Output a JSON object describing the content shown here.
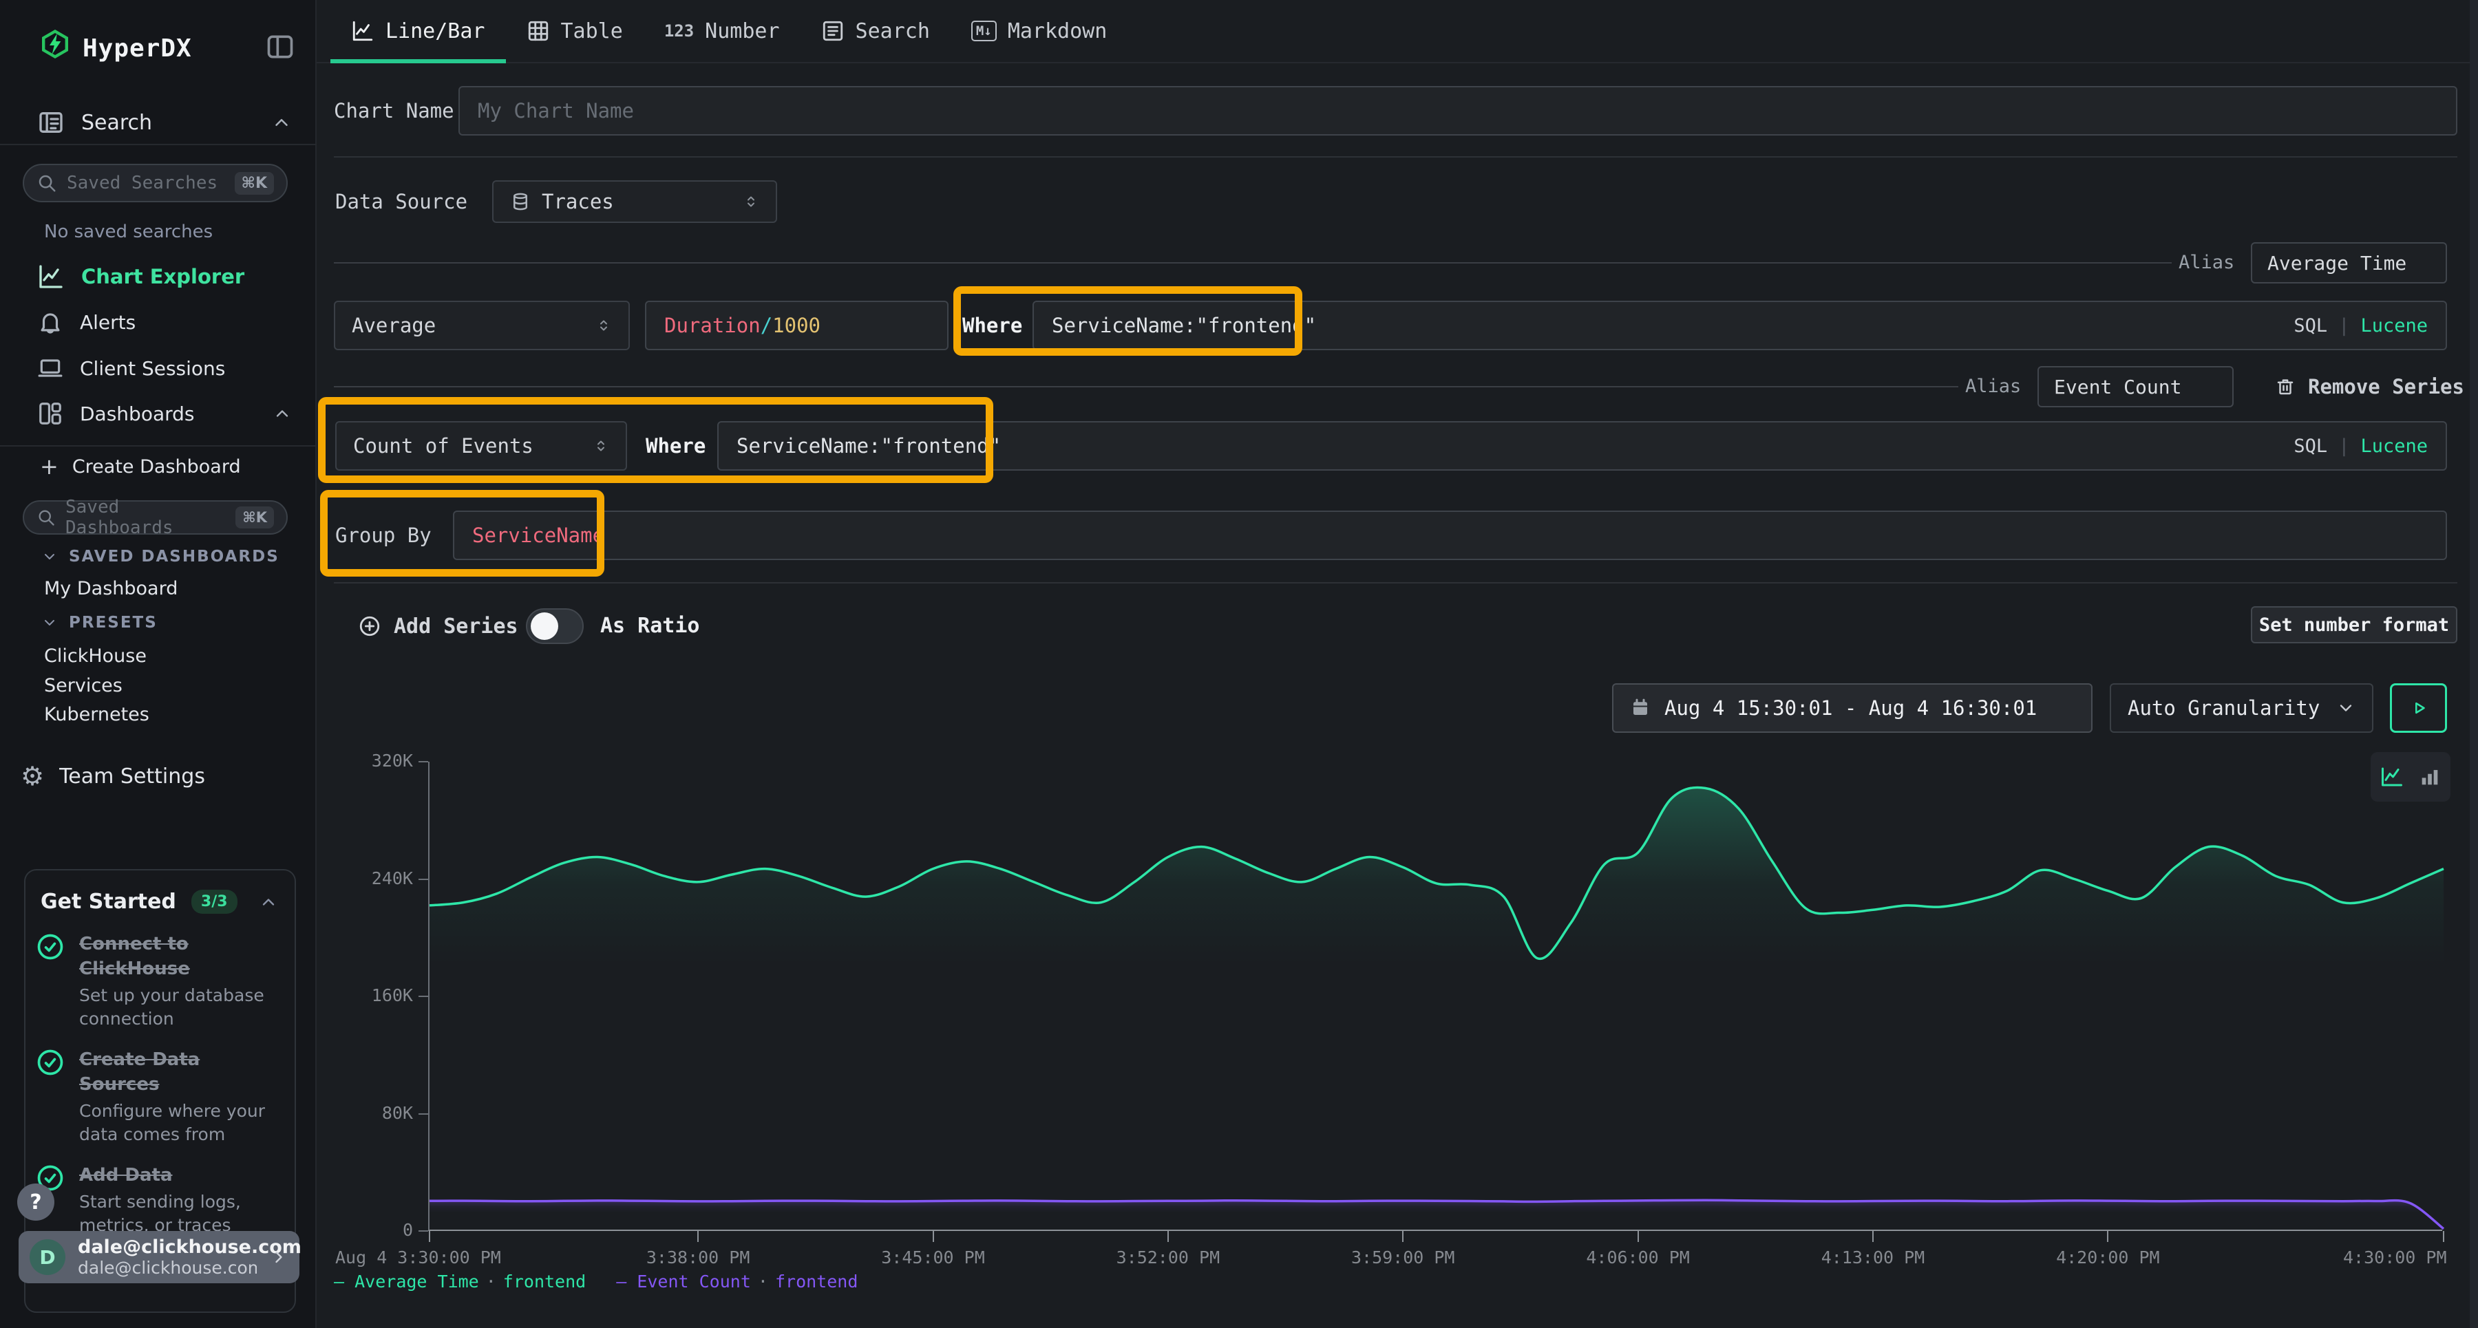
{
  "app": {
    "name": "HyperDX"
  },
  "colors": {
    "accent": "#2ee6a8",
    "annotation": "#f5a802",
    "series_avg": "#2ee6a8",
    "series_count": "#8457f5",
    "tok_field": "#ef6a7d",
    "tok_op": "#49d0cf",
    "tok_num": "#e3c271",
    "muted_blue": "#8b93a7"
  },
  "tabs": {
    "items": [
      {
        "label": "Line/Bar",
        "active": true
      },
      {
        "label": "Table"
      },
      {
        "label": "Number",
        "icon_text": "123"
      },
      {
        "label": "Search"
      },
      {
        "label": "Markdown",
        "icon_text": "M↓"
      }
    ]
  },
  "sidebar": {
    "search_label": "Search",
    "saved_searches_placeholder": "Saved Searches",
    "shortcut": "⌘K",
    "no_saved": "No saved searches",
    "chart_explorer": "Chart Explorer",
    "alerts": "Alerts",
    "client_sessions": "Client Sessions",
    "dashboards": "Dashboards",
    "create_dashboard": "Create Dashboard",
    "create_dashboard_plus": "+",
    "saved_dashboards_placeholder": "Saved Dashboards",
    "saved_dashboards_header": "SAVED DASHBOARDS",
    "my_dashboard": "My Dashboard",
    "presets_header": "PRESETS",
    "presets": [
      "ClickHouse",
      "Services",
      "Kubernetes"
    ],
    "team_settings": "Team Settings"
  },
  "builder": {
    "chart_name_label": "Chart Name",
    "chart_name_placeholder": "My Chart Name",
    "data_source_label": "Data Source",
    "data_source_value": "Traces",
    "series": [
      {
        "alias_label": "Alias",
        "alias": "Average Time",
        "aggregation": "Average",
        "field": "Duration",
        "field_op": "/",
        "field_arg": "1000",
        "where_label": "Where",
        "where": "ServiceName:\"frontend\"",
        "sql_label": "SQL",
        "sql_divider": "|",
        "lucene_label": "Lucene"
      },
      {
        "alias_label": "Alias",
        "alias": "Event Count",
        "aggregation": "Count of Events",
        "where_label": "Where",
        "where": "ServiceName:\"frontend\"",
        "sql_label": "SQL",
        "sql_divider": "|",
        "lucene_label": "Lucene",
        "remove_label": "Remove Series"
      }
    ],
    "group_by_label": "Group By",
    "group_by_value": "ServiceName",
    "add_series_label": "Add Series",
    "as_ratio_label": "As Ratio",
    "set_number_format_label": "Set number format"
  },
  "chart_header": {
    "time_range": "Aug 4 15:30:01 - Aug 4 16:30:01",
    "granularity": "Auto Granularity"
  },
  "chart_data": {
    "type": "line",
    "title": "",
    "grid": false,
    "legend_position": "bottom-left",
    "ylim": [
      0,
      320
    ],
    "y_unit": "K",
    "y_ticks": [
      {
        "v": 320,
        "label": "320K"
      },
      {
        "v": 240,
        "label": "240K"
      },
      {
        "v": 160,
        "label": "160K"
      },
      {
        "v": 80,
        "label": "80K"
      },
      {
        "v": 0,
        "label": "0"
      }
    ],
    "x_minutes_span": 60,
    "x_ticks": [
      {
        "minute": 0,
        "label": "Aug 4 3:30:00 PM",
        "align": "start"
      },
      {
        "minute": 8,
        "label": "3:38:00 PM"
      },
      {
        "minute": 15,
        "label": "3:45:00 PM"
      },
      {
        "minute": 22,
        "label": "3:52:00 PM"
      },
      {
        "minute": 29,
        "label": "3:59:00 PM"
      },
      {
        "minute": 36,
        "label": "4:06:00 PM"
      },
      {
        "minute": 43,
        "label": "4:13:00 PM"
      },
      {
        "minute": 50,
        "label": "4:20:00 PM"
      },
      {
        "minute": 60,
        "label": "4:30:00 PM",
        "align": "end"
      }
    ],
    "series": [
      {
        "name": "Average Time",
        "group": "frontend",
        "color": "#2ee6a8",
        "unit": "K",
        "values": [
          222,
          224,
          230,
          241,
          251,
          255,
          250,
          242,
          238,
          243,
          247,
          242,
          234,
          228,
          235,
          247,
          252,
          247,
          238,
          229,
          224,
          238,
          255,
          262,
          254,
          244,
          238,
          247,
          255,
          248,
          237,
          236,
          228,
          186,
          210,
          250,
          258,
          295,
          302,
          288,
          252,
          220,
          217,
          219,
          222,
          221,
          225,
          232,
          246,
          240,
          232,
          227,
          248,
          262,
          256,
          242,
          236,
          224,
          227,
          237,
          247
        ]
      },
      {
        "name": "Event Count",
        "group": "frontend",
        "color": "#8457f5",
        "unit": "K",
        "values": [
          20.5,
          20.6,
          20.4,
          20.3,
          20.5,
          20.7,
          20.6,
          20.4,
          20.2,
          20.3,
          20.5,
          20.6,
          20.5,
          20.3,
          20.2,
          20.4,
          20.6,
          20.7,
          20.5,
          20.3,
          20.2,
          20.4,
          20.5,
          20.6,
          20.8,
          20.6,
          20.4,
          20.3,
          20.5,
          20.6,
          20.5,
          20.4,
          20.2,
          20.0,
          20.3,
          20.5,
          20.7,
          20.9,
          21.0,
          20.8,
          20.5,
          20.3,
          20.2,
          20.4,
          20.5,
          20.6,
          20.4,
          20.3,
          20.5,
          20.7,
          20.6,
          20.4,
          20.3,
          20.5,
          20.6,
          20.5,
          20.4,
          20.3,
          20.4,
          19.0,
          1.5
        ]
      }
    ]
  },
  "legend": {
    "separator": "·"
  },
  "get_started": {
    "title": "Get Started",
    "badge": "3/3",
    "items": [
      {
        "title": "Connect to ClickHouse",
        "desc": "Set up your database connection"
      },
      {
        "title": "Create Data Sources",
        "desc": "Configure where your data comes from"
      },
      {
        "title": "Add Data",
        "desc": "Start sending logs, metrics, or traces"
      }
    ]
  },
  "help_button_label": "?",
  "user": {
    "initial": "D",
    "email": "dale@clickhouse.com",
    "sub": "dale@clickhouse.com's"
  }
}
